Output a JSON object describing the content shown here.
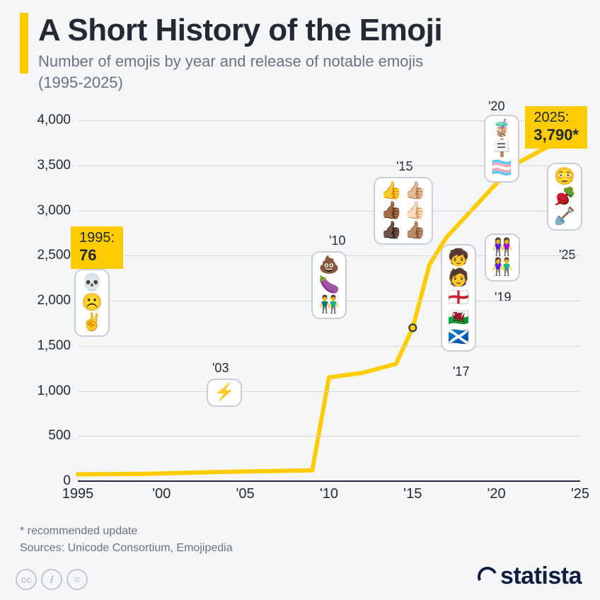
{
  "title": "A Short History of the Emoji",
  "subtitle_line1": "Number of emojis by year and release of notable emojis",
  "subtitle_line2": "(1995-2025)",
  "chart": {
    "type": "line",
    "background_color": "#f5f6f8",
    "line_color": "#ffcc00",
    "line_width": 6,
    "grid_color": "#d4d8de",
    "axis_color": "#232a33",
    "x_range": [
      1995,
      2025
    ],
    "y_range": [
      0,
      4000
    ],
    "y_ticks": [
      0,
      500,
      1000,
      1500,
      2000,
      2500,
      3000,
      3500,
      4000
    ],
    "y_tick_labels": [
      "0",
      "500",
      "1,000",
      "1,500",
      "2,000",
      "2,500",
      "3,000",
      "3,500",
      "4,000"
    ],
    "x_ticks": [
      1995,
      2000,
      2005,
      2010,
      2015,
      2020,
      2025
    ],
    "x_tick_labels": [
      "1995",
      "'00",
      "'05",
      "'10",
      "'15",
      "'20",
      "'25"
    ],
    "data_points": [
      {
        "year": 1995,
        "value": 76
      },
      {
        "year": 1999,
        "value": 80
      },
      {
        "year": 2003,
        "value": 100
      },
      {
        "year": 2009,
        "value": 120
      },
      {
        "year": 2010,
        "value": 1150
      },
      {
        "year": 2012,
        "value": 1200
      },
      {
        "year": 2014,
        "value": 1300
      },
      {
        "year": 2015,
        "value": 1700
      },
      {
        "year": 2016,
        "value": 2400
      },
      {
        "year": 2017,
        "value": 2700
      },
      {
        "year": 2018,
        "value": 2900
      },
      {
        "year": 2019,
        "value": 3100
      },
      {
        "year": 2020,
        "value": 3300
      },
      {
        "year": 2021,
        "value": 3500
      },
      {
        "year": 2022,
        "value": 3600
      },
      {
        "year": 2023,
        "value": 3700
      },
      {
        "year": 2025,
        "value": 3790
      }
    ]
  },
  "highlights": {
    "start": {
      "label": "1995:",
      "value": "76"
    },
    "end": {
      "label": "2025:",
      "value": "3,790*"
    }
  },
  "callouts": [
    {
      "id": "c1995",
      "year_label": "",
      "emojis": [
        "💀",
        "☹️",
        "✌️"
      ]
    },
    {
      "id": "c2003",
      "year_label": "'03",
      "emojis": [
        "⚡"
      ]
    },
    {
      "id": "c2010",
      "year_label": "'10",
      "emojis": [
        "💩",
        "🍆",
        "👬"
      ]
    },
    {
      "id": "c2015",
      "year_label": "'15",
      "emojis_grid": [
        [
          "👍",
          "👍🏼"
        ],
        [
          "👍🏾",
          "👍🏻"
        ],
        [
          "👍🏿",
          "👍🏽"
        ]
      ]
    },
    {
      "id": "c2017",
      "year_label": "'17",
      "emojis": [
        "🧒",
        "🧑",
        "🏴󠁧󠁢󠁥󠁮󠁧󠁿",
        "🏴󠁧󠁢󠁷󠁬󠁳󠁿",
        "🏴󠁧󠁢󠁳󠁣󠁴󠁿"
      ]
    },
    {
      "id": "c2019",
      "year_label": "'19",
      "emojis": [
        "👭",
        "👫"
      ]
    },
    {
      "id": "c2020",
      "year_label": "'20",
      "emojis": [
        "🧋",
        "🪧",
        "🏳️‍⚧️"
      ]
    },
    {
      "id": "c2025",
      "year_label": "'25",
      "emojis": [
        "🫩",
        "🫜",
        "🪏"
      ]
    }
  ],
  "footnote": "* recommended update",
  "sources": "Sources: Unicode Consortium, Emojipedia",
  "logo_text": "statista",
  "cc_labels": [
    "cc",
    "𝒊",
    "="
  ]
}
